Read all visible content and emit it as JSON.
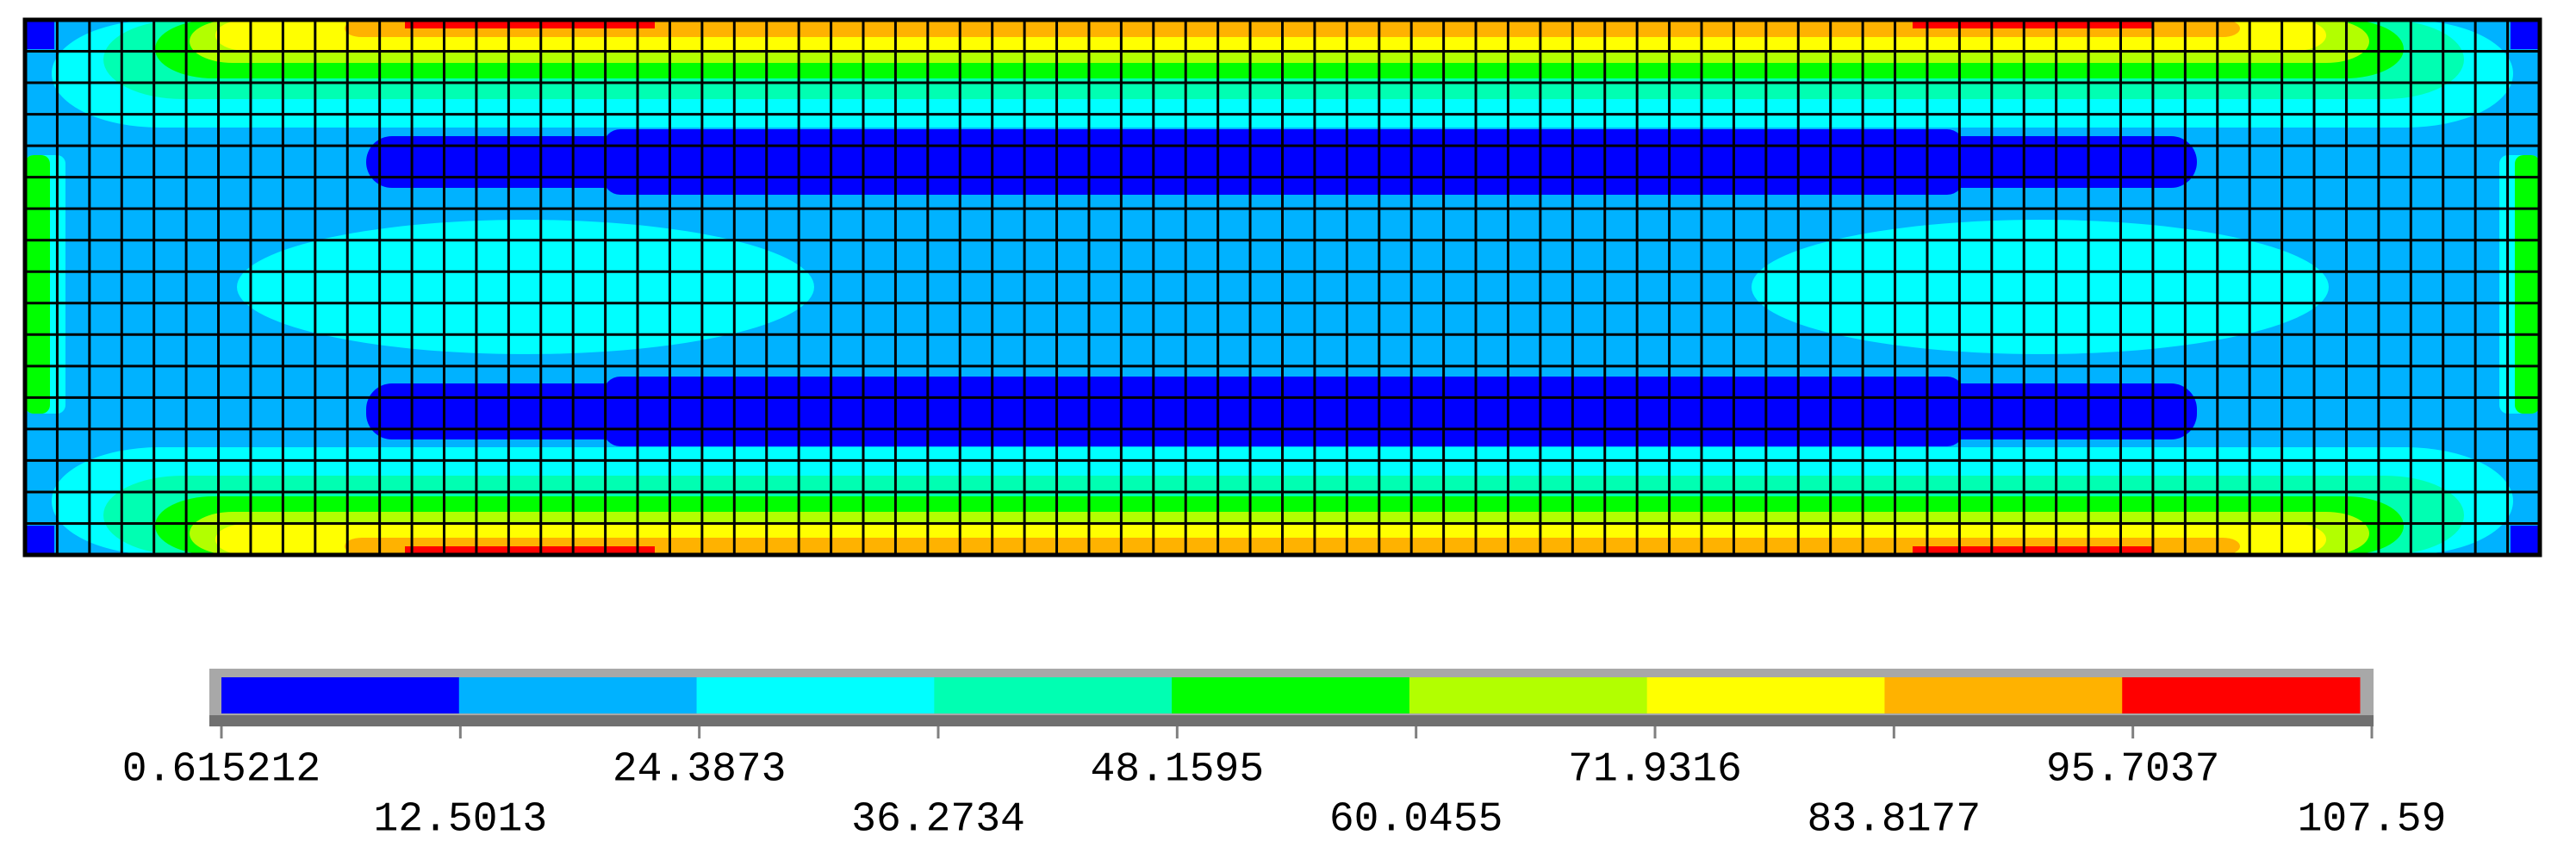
{
  "chart_data": {
    "type": "contour",
    "colors": [
      "#0000ff",
      "#00b2ff",
      "#00ffff",
      "#00ffb2",
      "#00ff00",
      "#b2ff00",
      "#ffff00",
      "#ffb200",
      "#ff0000"
    ],
    "xlim": [
      0.615212,
      107.59
    ],
    "xticks": [
      0.615212,
      12.5013,
      24.3873,
      36.2734,
      48.1595,
      60.0455,
      71.9316,
      83.8177,
      95.7037,
      107.59
    ]
  }
}
